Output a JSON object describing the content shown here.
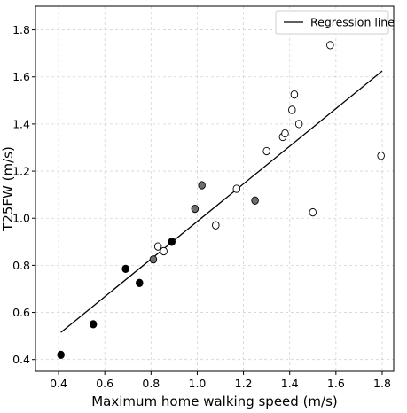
{
  "chart_data": {
    "type": "scatter",
    "title": "",
    "xlabel": "Maximum home walking speed (m/s)",
    "ylabel": "T25FW (m/s)",
    "xlim": [
      0.3,
      1.85
    ],
    "ylim": [
      0.35,
      1.9
    ],
    "xticks": [
      "0.4",
      "0.6",
      "0.8",
      "1.0",
      "1.2",
      "1.4",
      "1.6",
      "1.8"
    ],
    "yticks": [
      "0.4",
      "0.6",
      "0.8",
      "1.0",
      "1.2",
      "1.4",
      "1.6",
      "1.8"
    ],
    "grid": true,
    "legend": {
      "position": "top-right",
      "entries": [
        "Regression line"
      ]
    },
    "series": [
      {
        "marker": "filled-black",
        "color": "#000000",
        "points": [
          {
            "x": 0.41,
            "y": 0.42
          },
          {
            "x": 0.55,
            "y": 0.55
          },
          {
            "x": 0.69,
            "y": 0.785
          },
          {
            "x": 0.75,
            "y": 0.725
          },
          {
            "x": 0.89,
            "y": 0.9
          }
        ]
      },
      {
        "marker": "filled-gray",
        "color": "#6e6e6e",
        "points": [
          {
            "x": 0.81,
            "y": 0.825
          },
          {
            "x": 0.99,
            "y": 1.04
          },
          {
            "x": 1.02,
            "y": 1.14
          },
          {
            "x": 1.25,
            "y": 1.075
          }
        ]
      },
      {
        "marker": "open-circle",
        "color": "#ffffff",
        "points": [
          {
            "x": 0.83,
            "y": 0.88
          },
          {
            "x": 0.855,
            "y": 0.86
          },
          {
            "x": 1.08,
            "y": 0.97
          },
          {
            "x": 1.17,
            "y": 1.125
          },
          {
            "x": 1.3,
            "y": 1.285
          },
          {
            "x": 1.37,
            "y": 1.345
          },
          {
            "x": 1.38,
            "y": 1.36
          },
          {
            "x": 1.41,
            "y": 1.46
          },
          {
            "x": 1.42,
            "y": 1.525
          },
          {
            "x": 1.44,
            "y": 1.4
          },
          {
            "x": 1.5,
            "y": 1.025
          },
          {
            "x": 1.575,
            "y": 1.735
          },
          {
            "x": 1.795,
            "y": 1.265
          }
        ]
      }
    ],
    "regression_line": {
      "name": "Regression line",
      "x": [
        0.41,
        1.8
      ],
      "y": [
        0.515,
        1.625
      ]
    }
  }
}
